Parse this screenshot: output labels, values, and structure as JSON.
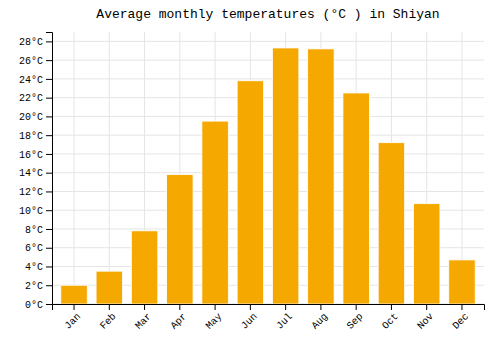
{
  "chart_data": {
    "type": "bar",
    "title": "Average monthly temperatures (°C ) in Shiyan",
    "categories": [
      "Jan",
      "Feb",
      "Mar",
      "Apr",
      "May",
      "Jun",
      "Jul",
      "Aug",
      "Sep",
      "Oct",
      "Nov",
      "Dec"
    ],
    "values": [
      2.0,
      3.5,
      7.8,
      13.8,
      19.5,
      23.8,
      27.3,
      27.2,
      22.5,
      17.2,
      10.7,
      4.7
    ],
    "color": "#F5A800",
    "ylim": [
      0,
      29
    ],
    "yticks": [
      {
        "value": 0,
        "label": "0°C"
      },
      {
        "value": 2,
        "label": "2°C"
      },
      {
        "value": 4,
        "label": "4°C"
      },
      {
        "value": 6,
        "label": "6°C"
      },
      {
        "value": 8,
        "label": "8°C"
      },
      {
        "value": 10,
        "label": "10°C"
      },
      {
        "value": 12,
        "label": "12°C"
      },
      {
        "value": 14,
        "label": "14°C"
      },
      {
        "value": 16,
        "label": "16°C"
      },
      {
        "value": 18,
        "label": "18°C"
      },
      {
        "value": 20,
        "label": "20°C"
      },
      {
        "value": 22,
        "label": "22°C"
      },
      {
        "value": 24,
        "label": "24°C"
      },
      {
        "value": 26,
        "label": "26°C"
      },
      {
        "value": 28,
        "label": "28°C"
      }
    ],
    "grid": true
  }
}
